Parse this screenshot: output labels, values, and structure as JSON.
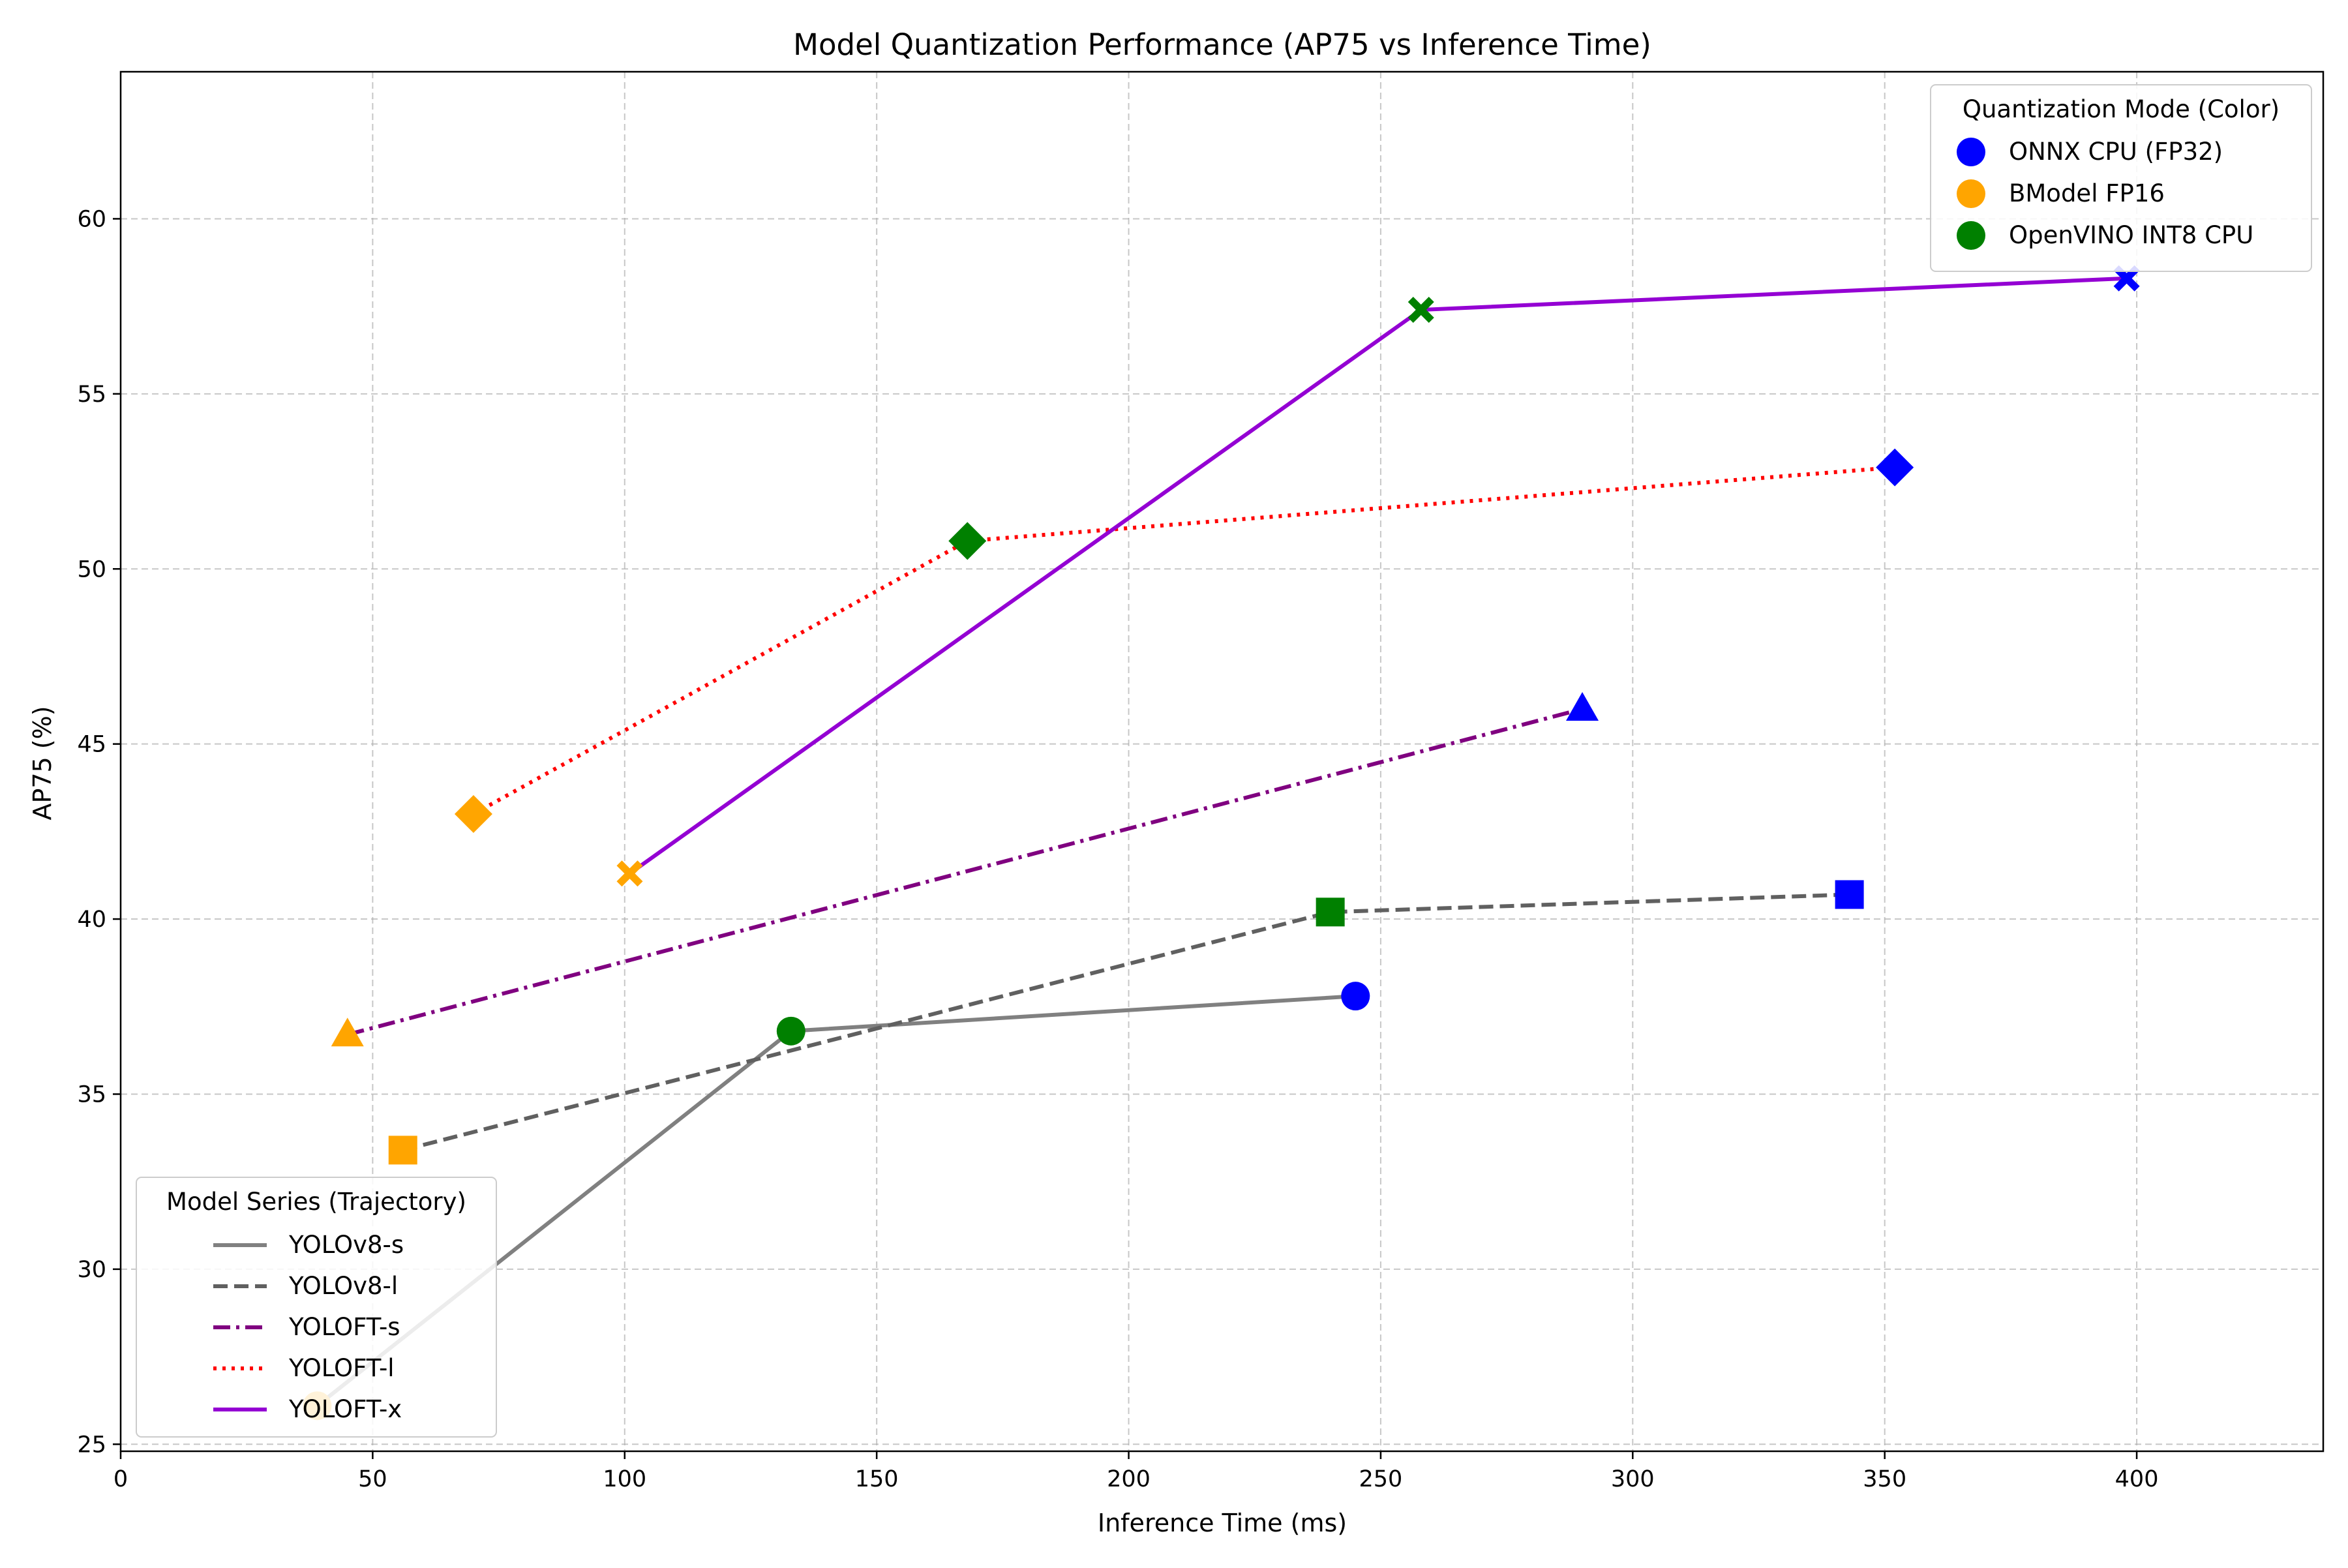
{
  "chart_data": {
    "type": "scatter",
    "title": "Model Quantization Performance (AP75 vs Inference Time)",
    "xlabel": "Inference Time (ms)",
    "ylabel": "AP75 (%)",
    "xlim": [
      0,
      437
    ],
    "ylim": [
      24.8,
      64.2
    ],
    "xticks": [
      "0",
      "50",
      "100",
      "150",
      "200",
      "250",
      "300",
      "350",
      "400"
    ],
    "yticks": [
      "25",
      "30",
      "35",
      "40",
      "45",
      "50",
      "55",
      "60"
    ],
    "grid": true,
    "modes": [
      {
        "name": "ONNX CPU (FP32)",
        "color": "#0000ff"
      },
      {
        "name": "BModel FP16",
        "color": "#ffa500"
      },
      {
        "name": "OpenVINO INT8 CPU",
        "color": "#008000"
      }
    ],
    "series": [
      {
        "name": "YOLOv8-s",
        "line_style": "solid",
        "color": "#808080",
        "marker": "circle",
        "points": [
          {
            "x": 39,
            "y": 26.1,
            "mode": 1
          },
          {
            "x": 133,
            "y": 36.8,
            "mode": 2
          },
          {
            "x": 245,
            "y": 37.8,
            "mode": 0
          }
        ]
      },
      {
        "name": "YOLOv8-l",
        "line_style": "dashed",
        "color": "#606060",
        "marker": "square",
        "points": [
          {
            "x": 56,
            "y": 33.4,
            "mode": 1
          },
          {
            "x": 240,
            "y": 40.2,
            "mode": 2
          },
          {
            "x": 343,
            "y": 40.7,
            "mode": 0
          }
        ]
      },
      {
        "name": "YOLOFT-s",
        "line_style": "dashdot",
        "color": "#800080",
        "marker": "triangle",
        "points": [
          {
            "x": 45,
            "y": 36.7,
            "mode": 1
          },
          {
            "x": 290,
            "y": 46.0,
            "mode": 0
          }
        ]
      },
      {
        "name": "YOLOFT-l",
        "line_style": "dotted",
        "color": "#ff0000",
        "marker": "diamond",
        "points": [
          {
            "x": 70,
            "y": 43.0,
            "mode": 1
          },
          {
            "x": 168,
            "y": 50.8,
            "mode": 2
          },
          {
            "x": 352,
            "y": 52.9,
            "mode": 0
          }
        ]
      },
      {
        "name": "YOLOFT-x",
        "line_style": "solid",
        "color": "#9400d3",
        "marker": "x",
        "points": [
          {
            "x": 101,
            "y": 41.3,
            "mode": 1
          },
          {
            "x": 258,
            "y": 57.4,
            "mode": 2
          },
          {
            "x": 398,
            "y": 58.3,
            "mode": 0
          }
        ]
      }
    ],
    "legend_color": {
      "title": "Quantization Mode (Color)",
      "placement": "top-right"
    },
    "legend_series": {
      "title": "Model Series (Trajectory)",
      "placement": "bottom-left"
    }
  }
}
